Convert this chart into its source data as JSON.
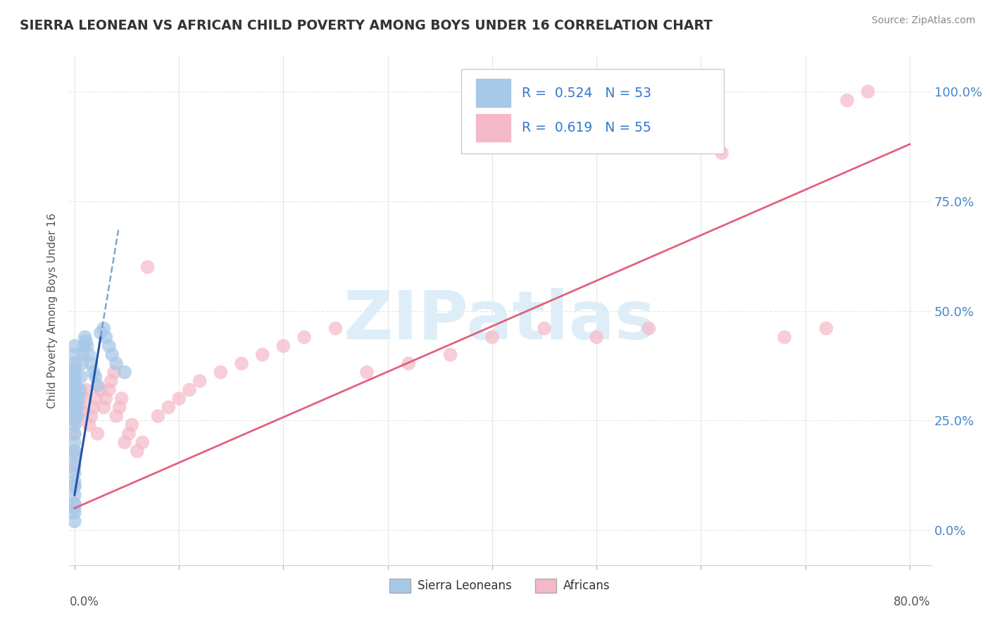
{
  "title": "SIERRA LEONEAN VS AFRICAN CHILD POVERTY AMONG BOYS UNDER 16 CORRELATION CHART",
  "source": "Source: ZipAtlas.com",
  "ylabel": "Child Poverty Among Boys Under 16",
  "yticks_labels": [
    "0.0%",
    "25.0%",
    "50.0%",
    "75.0%",
    "100.0%"
  ],
  "ytick_values": [
    0.0,
    0.25,
    0.5,
    0.75,
    1.0
  ],
  "xmin": -0.005,
  "xmax": 0.82,
  "ymin": -0.08,
  "ymax": 1.08,
  "sierra_R": 0.524,
  "sierra_N": 53,
  "african_R": 0.619,
  "african_N": 55,
  "sierra_color": "#a8c8e8",
  "african_color": "#f5b8c8",
  "sierra_solid_color": "#2255aa",
  "sierra_dash_color": "#6699cc",
  "african_line_color": "#e05070",
  "legend_text_color": "#3377cc",
  "tick_label_color": "#4488cc",
  "watermark": "ZIPatlas",
  "watermark_color": "#ddeef8",
  "background_color": "#ffffff",
  "grid_color": "#e8e8e8",
  "grid_style": "--"
}
